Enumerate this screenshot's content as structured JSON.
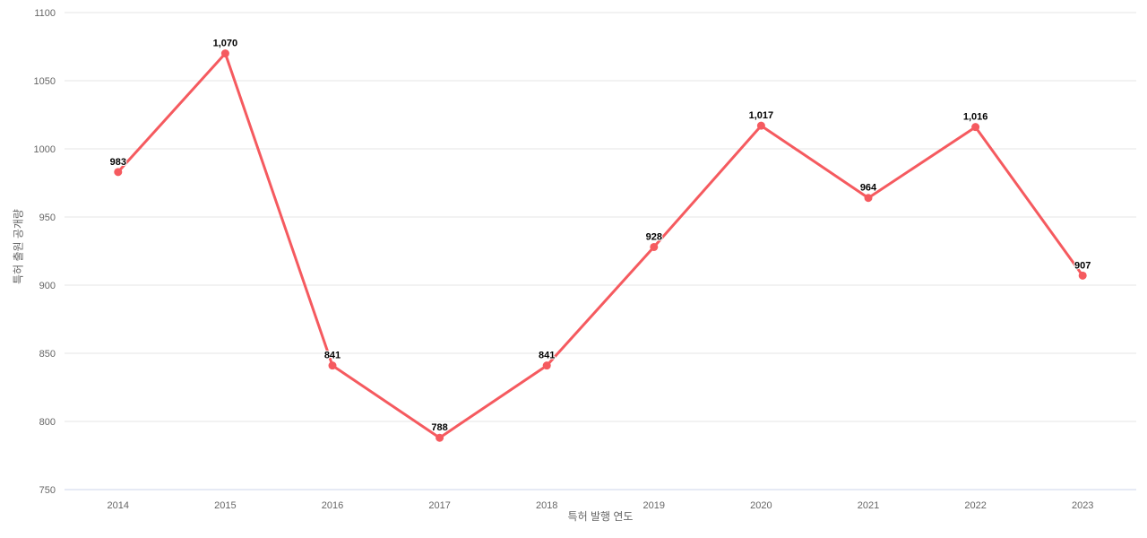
{
  "chart_data": {
    "type": "line",
    "title": "",
    "xlabel": "특허 발행 연도",
    "ylabel": "특허 출원 공개량",
    "categories": [
      "2014",
      "2015",
      "2016",
      "2017",
      "2018",
      "2019",
      "2020",
      "2021",
      "2022",
      "2023"
    ],
    "values": [
      983,
      1070,
      841,
      788,
      841,
      928,
      1017,
      964,
      1016,
      907
    ],
    "data_labels": [
      "983",
      "1,070",
      "841",
      "788",
      "841",
      "928",
      "1,017",
      "964",
      "1,016",
      "907"
    ],
    "ylim": [
      750,
      1100
    ],
    "yticks": [
      750,
      800,
      850,
      900,
      950,
      1000,
      1050,
      1100
    ],
    "grid": true,
    "legend": "none",
    "colors": {
      "line": "#f55a5f",
      "marker": "#f55a5f",
      "grid": "#e6e6e6",
      "axis_line": "#ccd6eb",
      "tick_label": "#666666",
      "axis_title": "#666666",
      "data_label": "#000000",
      "background": "#ffffff"
    }
  }
}
